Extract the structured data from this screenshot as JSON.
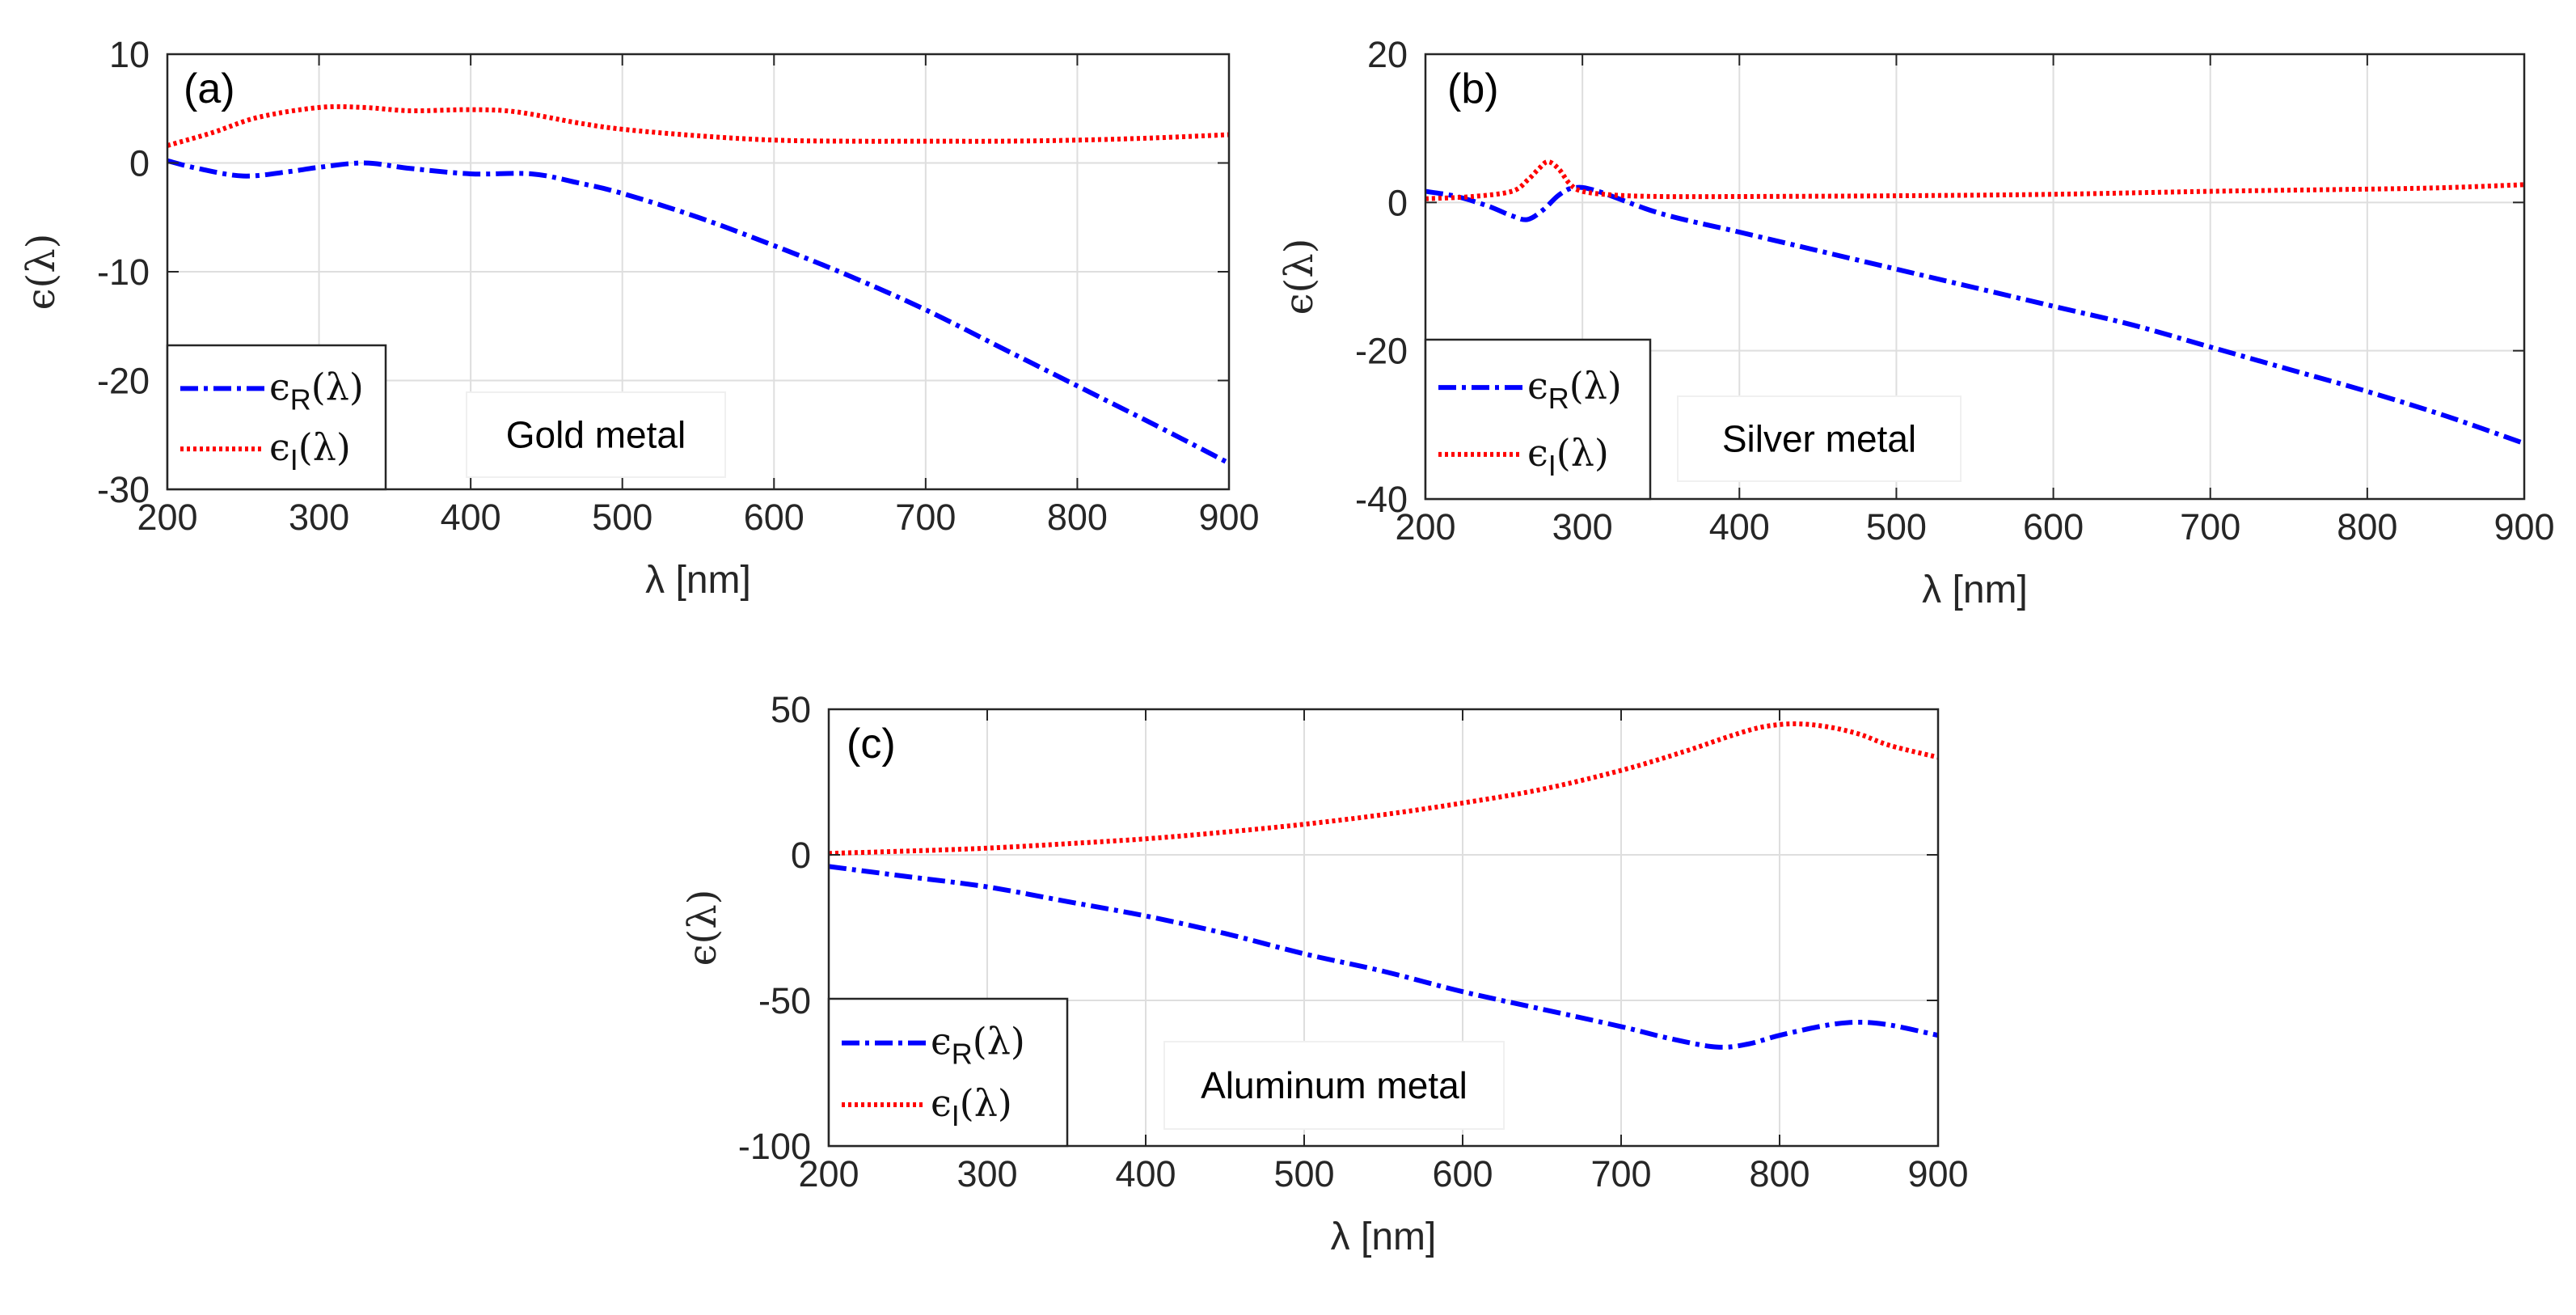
{
  "chart_data": [
    {
      "type": "line",
      "panel_label": "(a)",
      "annotation": "Gold metal",
      "xlabel": "λ [nm]",
      "ylabel": "ϵ(λ)",
      "xlim": [
        200,
        900
      ],
      "ylim": [
        -30,
        10
      ],
      "xticks": [
        200,
        300,
        400,
        500,
        600,
        700,
        800,
        900
      ],
      "yticks": [
        -30,
        -20,
        -10,
        0,
        10
      ],
      "grid": true,
      "legend_position": "bottom-left",
      "series": [
        {
          "name": "ϵR(λ)",
          "sym": "ϵ",
          "sub": "R",
          "arg": "(λ)",
          "color": "#0000ff",
          "style": "dashdot",
          "x": [
            200,
            220,
            250,
            280,
            300,
            330,
            360,
            400,
            440,
            470,
            500,
            550,
            600,
            650,
            700,
            750,
            800,
            850,
            900
          ],
          "y": [
            0.2,
            -0.5,
            -1.2,
            -0.8,
            -0.4,
            0,
            -0.5,
            -1,
            -1,
            -1.8,
            -2.8,
            -5,
            -7.6,
            -10.4,
            -13.5,
            -17,
            -20.5,
            -24,
            -27.6
          ]
        },
        {
          "name": "ϵI(λ)",
          "sym": "ϵ",
          "sub": "I",
          "arg": "(λ)",
          "color": "#ff0000",
          "style": "dotted",
          "x": [
            200,
            230,
            260,
            300,
            330,
            360,
            400,
            430,
            470,
            500,
            550,
            600,
            650,
            700,
            750,
            800,
            850,
            900
          ],
          "y": [
            1.6,
            2.8,
            4.2,
            5.1,
            5.1,
            4.8,
            4.9,
            4.7,
            3.7,
            3.1,
            2.5,
            2.1,
            2.0,
            2.0,
            2.0,
            2.1,
            2.3,
            2.6
          ]
        }
      ]
    },
    {
      "type": "line",
      "panel_label": "(b)",
      "annotation": "Silver metal",
      "xlabel": "λ [nm]",
      "ylabel": "ϵ(λ)",
      "xlim": [
        200,
        900
      ],
      "ylim": [
        -40,
        20
      ],
      "xticks": [
        200,
        300,
        400,
        500,
        600,
        700,
        800,
        900
      ],
      "yticks": [
        -40,
        -20,
        0,
        20
      ],
      "grid": true,
      "legend_position": "bottom-left",
      "series": [
        {
          "name": "ϵR(λ)",
          "sym": "ϵ",
          "sub": "R",
          "arg": "(λ)",
          "color": "#0000ff",
          "style": "dashdot",
          "x": [
            200,
            220,
            240,
            255,
            265,
            275,
            285,
            295,
            310,
            350,
            400,
            450,
            500,
            550,
            600,
            650,
            700,
            750,
            800,
            850,
            900
          ],
          "y": [
            1.5,
            0.8,
            -0.5,
            -1.8,
            -2.3,
            -1,
            1,
            2,
            1.5,
            -1.5,
            -4,
            -6.5,
            -9,
            -11.5,
            -14,
            -16.5,
            -19.5,
            -22.5,
            -25.5,
            -28.8,
            -32.5
          ]
        },
        {
          "name": "ϵI(λ)",
          "sym": "ϵ",
          "sub": "I",
          "arg": "(λ)",
          "color": "#ff0000",
          "style": "dotted",
          "x": [
            200,
            230,
            255,
            265,
            272,
            278,
            285,
            292,
            300,
            320,
            350,
            400,
            500,
            600,
            700,
            800,
            850,
            900
          ],
          "y": [
            0.5,
            0.8,
            1.5,
            3,
            4.5,
            5.5,
            4.5,
            2.5,
            1.5,
            1,
            0.8,
            0.8,
            0.9,
            1.1,
            1.5,
            1.8,
            2,
            2.4
          ]
        }
      ]
    },
    {
      "type": "line",
      "panel_label": "(c)",
      "annotation": "Aluminum metal",
      "xlabel": "λ [nm]",
      "ylabel": "ϵ(λ)",
      "xlim": [
        200,
        900
      ],
      "ylim": [
        -100,
        50
      ],
      "xticks": [
        200,
        300,
        400,
        500,
        600,
        700,
        800,
        900
      ],
      "yticks": [
        -100,
        -50,
        0,
        50
      ],
      "grid": true,
      "legend_position": "bottom-left",
      "series": [
        {
          "name": "ϵR(λ)",
          "sym": "ϵ",
          "sub": "R",
          "arg": "(λ)",
          "color": "#0000ff",
          "style": "dashdot",
          "x": [
            200,
            250,
            300,
            350,
            400,
            450,
            500,
            550,
            600,
            650,
            700,
            730,
            760,
            780,
            800,
            830,
            850,
            870,
            900
          ],
          "y": [
            -4,
            -7.5,
            -11,
            -16,
            -21,
            -27,
            -34,
            -40,
            -47,
            -53,
            -59,
            -63,
            -66,
            -65,
            -62,
            -58.5,
            -57.5,
            -58.5,
            -62
          ]
        },
        {
          "name": "ϵI(λ)",
          "sym": "ϵ",
          "sub": "I",
          "arg": "(λ)",
          "color": "#ff0000",
          "style": "dotted",
          "x": [
            200,
            250,
            300,
            350,
            400,
            450,
            500,
            550,
            600,
            650,
            700,
            740,
            770,
            790,
            810,
            830,
            850,
            870,
            900
          ],
          "y": [
            0.5,
            1.3,
            2.3,
            3.8,
            5.5,
            7.8,
            10.5,
            13.8,
            17.8,
            22.5,
            29,
            35.5,
            41,
            44,
            45,
            44,
            41.5,
            37.5,
            33.5
          ]
        }
      ]
    }
  ]
}
